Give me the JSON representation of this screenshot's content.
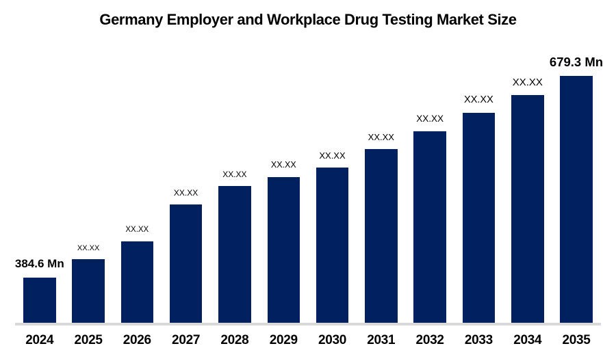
{
  "title": "Germany Employer and Workplace Drug Testing Market Size",
  "chart_data": {
    "type": "bar",
    "title": "Germany Employer and Workplace Drug Testing Market Size",
    "unit": "Mn",
    "categories": [
      "2024",
      "2025",
      "2026",
      "2027",
      "2028",
      "2029",
      "2030",
      "2031",
      "2032",
      "2033",
      "2034",
      "2035"
    ],
    "values": [
      384.6,
      412,
      438,
      492,
      519,
      532,
      546,
      573,
      599,
      626,
      652,
      679.3
    ],
    "value_labels": [
      "384.6 Mn",
      "XX.XX",
      "XX.XX",
      "XX.XX",
      "XX.XX",
      "XX.XX",
      "XX.XX",
      "XX.XX",
      "XX.XX",
      "XX.XX",
      "XX.XX",
      "679.3 Mn"
    ],
    "known_values": {
      "2024": "384.6 Mn",
      "2035": "679.3 Mn"
    },
    "xlabel": "",
    "ylabel": "",
    "grid": false,
    "legend": false,
    "baseline_value": 318.6,
    "ylim": [
      318.6,
      700
    ],
    "bar_color": "#002060",
    "axis_line_color": "#d9d9d9",
    "text_color": "#000000",
    "label_font_px": [
      17,
      11,
      11.5,
      12,
      12,
      12.5,
      13,
      13,
      13.5,
      14.5,
      15,
      18.5
    ],
    "label_bold": [
      true,
      false,
      false,
      false,
      false,
      false,
      false,
      false,
      false,
      false,
      false,
      true
    ]
  }
}
